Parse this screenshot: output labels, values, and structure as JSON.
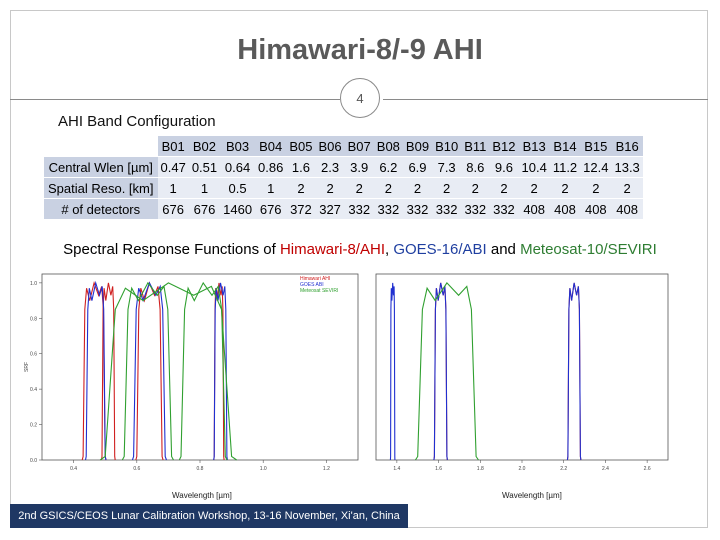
{
  "title": "Himawari-8/-9 AHI",
  "slide_number": "4",
  "band_section_title": "AHI Band Configuration",
  "bands": {
    "headers": [
      "B01",
      "B02",
      "B03",
      "B04",
      "B05",
      "B06",
      "B07",
      "B08",
      "B09",
      "B10",
      "B11",
      "B12",
      "B13",
      "B14",
      "B15",
      "B16"
    ],
    "rows": [
      {
        "label": "Central Wlen [µm]",
        "values": [
          "0.47",
          "0.51",
          "0.64",
          "0.86",
          "1.6",
          "2.3",
          "3.9",
          "6.2",
          "6.9",
          "7.3",
          "8.6",
          "9.6",
          "10.4",
          "11.2",
          "12.4",
          "13.3"
        ]
      },
      {
        "label": "Spatial Reso. [km]",
        "values": [
          "1",
          "1",
          "0.5",
          "1",
          "2",
          "2",
          "2",
          "2",
          "2",
          "2",
          "2",
          "2",
          "2",
          "2",
          "2",
          "2"
        ]
      },
      {
        "label": "# of detectors",
        "values": [
          "676",
          "676",
          "1460",
          "676",
          "372",
          "327",
          "332",
          "332",
          "332",
          "332",
          "332",
          "332",
          "408",
          "408",
          "408",
          "408"
        ]
      }
    ]
  },
  "srf_title": {
    "prefix": "Spectral Response Functions of ",
    "ahi": "Himawari-8/AHI",
    "sep": ", ",
    "abi": "GOES-16/ABI",
    "and": " and ",
    "seviri": "Meteosat-10/SEVIRI"
  },
  "colors": {
    "ahi": "#d02020",
    "abi": "#2030d0",
    "seviri": "#30a030",
    "footer_bg": "#1f3864"
  },
  "chart_data": [
    {
      "type": "line",
      "xlabel": "Wavelength [µm]",
      "ylabel": "SRF",
      "xlim": [
        0.3,
        1.3
      ],
      "ylim": [
        0,
        1.05
      ],
      "xticks": [
        "0.4",
        "0.6",
        "0.8",
        "1.0",
        "1.2"
      ],
      "yticks": [
        "0.0",
        "0.2",
        "0.4",
        "0.6",
        "0.8",
        "1.0"
      ],
      "legend": [
        "Himawari AHI",
        "GOES ABI",
        "Meteosat SEVIRI"
      ],
      "legend_position": "top-right",
      "series": [
        {
          "name": "Himawari AHI",
          "bands": [
            [
              0.43,
              0.5
            ],
            [
              0.49,
              0.53
            ],
            [
              0.6,
              0.68
            ],
            [
              0.845,
              0.875
            ]
          ]
        },
        {
          "name": "GOES ABI",
          "bands": [
            [
              0.44,
              0.5
            ],
            [
              0.59,
              0.69
            ],
            [
              0.845,
              0.885
            ]
          ]
        },
        {
          "name": "Meteosat SEVIRI",
          "bands": [
            [
              0.56,
              0.71
            ],
            [
              0.74,
              0.88
            ],
            [
              0.5,
              0.9
            ]
          ]
        }
      ]
    },
    {
      "type": "line",
      "xlabel": "Wavelength [µm]",
      "ylabel": "",
      "xlim": [
        1.3,
        2.7
      ],
      "ylim": [
        0,
        1.05
      ],
      "xticks": [
        "1.4",
        "1.6",
        "1.8",
        "2.0",
        "2.2",
        "2.4",
        "2.6"
      ],
      "yticks": [],
      "series": [
        {
          "name": "Himawari AHI",
          "bands": [
            [
              1.58,
              1.64
            ],
            [
              2.22,
              2.28
            ]
          ]
        },
        {
          "name": "GOES ABI",
          "bands": [
            [
              1.37,
              1.39
            ],
            [
              1.58,
              1.64
            ],
            [
              2.22,
              2.28
            ]
          ]
        },
        {
          "name": "Meteosat SEVIRI",
          "bands": [
            [
              1.5,
              1.78
            ]
          ]
        }
      ]
    }
  ],
  "footer": "2nd GSICS/CEOS Lunar Calibration Workshop, 13-16 November, Xi'an, China"
}
